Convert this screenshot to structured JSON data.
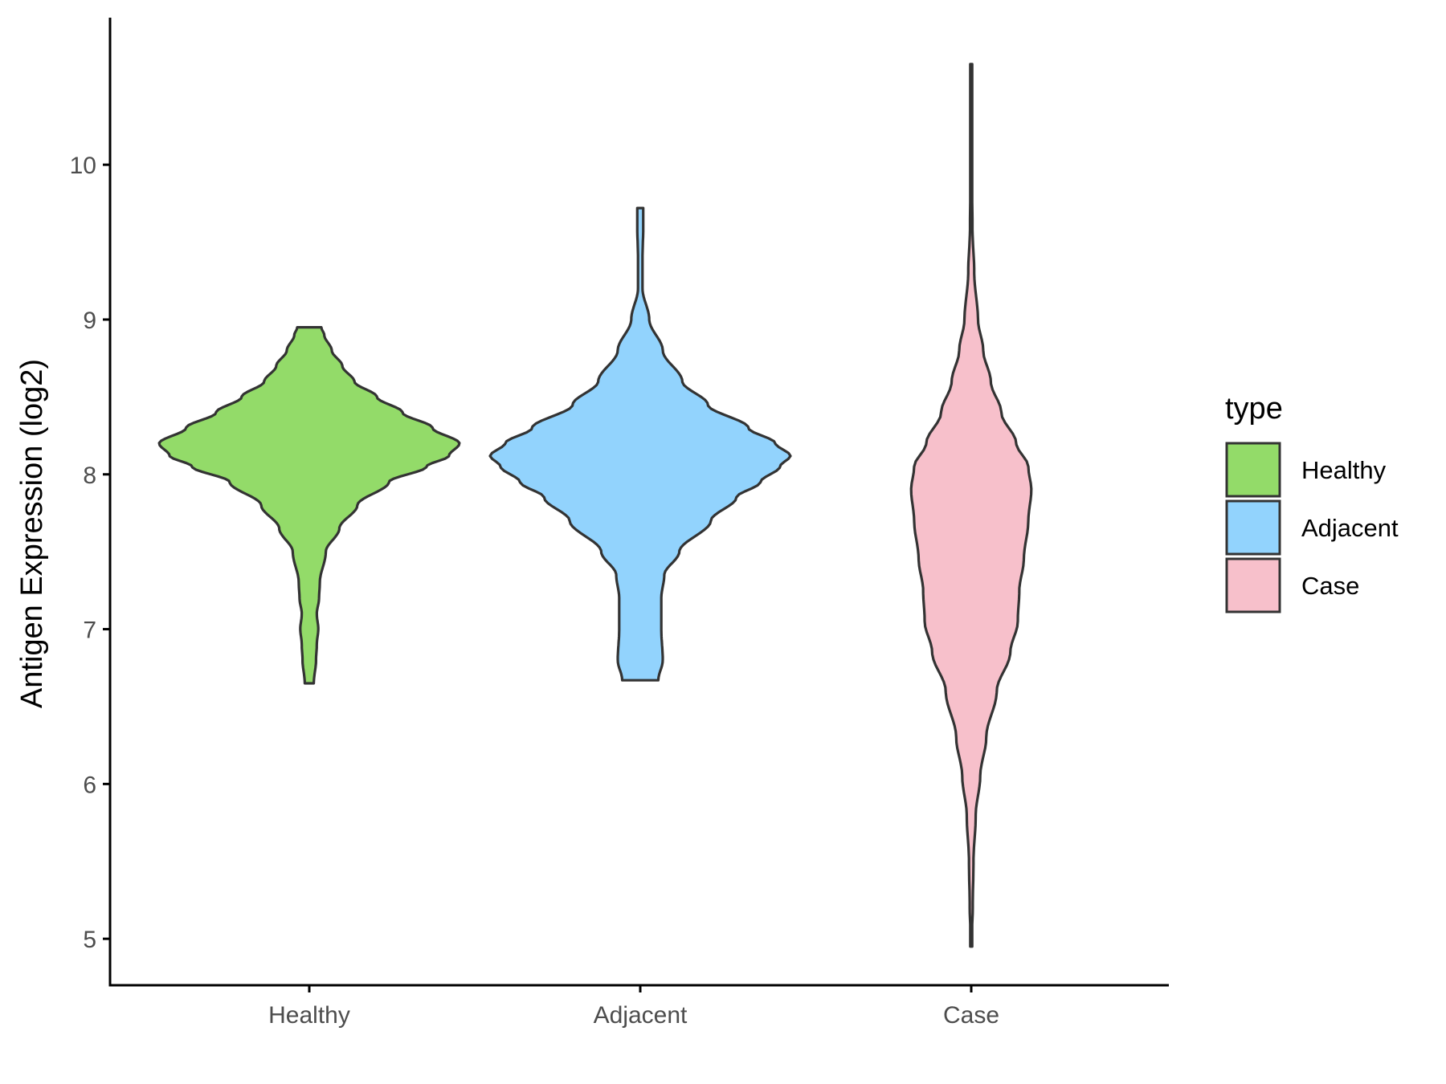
{
  "chart_data": {
    "type": "violin",
    "title": "",
    "xlabel": "",
    "ylabel": "Antigen Expression (log2)",
    "categories": [
      "Healthy",
      "Adjacent",
      "Case"
    ],
    "ylim": [
      4.7,
      10.95
    ],
    "yticks": [
      5,
      6,
      7,
      8,
      9,
      10
    ],
    "grid": false,
    "legend": {
      "title": "type",
      "position": "right",
      "entries": [
        "Healthy",
        "Adjacent",
        "Case"
      ]
    },
    "colors": {
      "Healthy": "#93DB69",
      "Adjacent": "#92D3FD",
      "Case": "#F7C0CB",
      "outline": "#333333"
    },
    "series": [
      {
        "category": "Healthy",
        "min": 6.65,
        "max": 8.95,
        "profile": [
          [
            6.65,
            0.03
          ],
          [
            6.8,
            0.045
          ],
          [
            6.9,
            0.05
          ],
          [
            7.0,
            0.06
          ],
          [
            7.1,
            0.05
          ],
          [
            7.2,
            0.065
          ],
          [
            7.3,
            0.07
          ],
          [
            7.5,
            0.11
          ],
          [
            7.65,
            0.2
          ],
          [
            7.8,
            0.32
          ],
          [
            7.95,
            0.53
          ],
          [
            8.05,
            0.78
          ],
          [
            8.12,
            0.93
          ],
          [
            8.2,
            1.0
          ],
          [
            8.3,
            0.82
          ],
          [
            8.4,
            0.62
          ],
          [
            8.5,
            0.45
          ],
          [
            8.6,
            0.3
          ],
          [
            8.7,
            0.22
          ],
          [
            8.8,
            0.15
          ],
          [
            8.9,
            0.1
          ],
          [
            8.95,
            0.08
          ]
        ]
      },
      {
        "category": "Adjacent",
        "min": 6.67,
        "max": 9.72,
        "profile": [
          [
            6.67,
            0.12
          ],
          [
            6.8,
            0.15
          ],
          [
            7.0,
            0.14
          ],
          [
            7.2,
            0.14
          ],
          [
            7.35,
            0.16
          ],
          [
            7.5,
            0.26
          ],
          [
            7.7,
            0.47
          ],
          [
            7.85,
            0.64
          ],
          [
            7.95,
            0.8
          ],
          [
            8.05,
            0.93
          ],
          [
            8.12,
            1.0
          ],
          [
            8.2,
            0.9
          ],
          [
            8.3,
            0.72
          ],
          [
            8.45,
            0.45
          ],
          [
            8.6,
            0.28
          ],
          [
            8.8,
            0.15
          ],
          [
            9.0,
            0.06
          ],
          [
            9.2,
            0.015
          ],
          [
            9.4,
            0.015
          ],
          [
            9.6,
            0.02
          ],
          [
            9.72,
            0.02
          ]
        ]
      },
      {
        "category": "Case",
        "min": 4.95,
        "max": 10.65,
        "profile": [
          [
            4.95,
            0.0
          ],
          [
            5.2,
            0.01
          ],
          [
            5.5,
            0.015
          ],
          [
            5.8,
            0.03
          ],
          [
            6.05,
            0.06
          ],
          [
            6.3,
            0.1
          ],
          [
            6.6,
            0.17
          ],
          [
            6.85,
            0.26
          ],
          [
            7.05,
            0.31
          ],
          [
            7.25,
            0.32
          ],
          [
            7.45,
            0.35
          ],
          [
            7.7,
            0.38
          ],
          [
            7.9,
            0.4
          ],
          [
            8.05,
            0.38
          ],
          [
            8.2,
            0.3
          ],
          [
            8.4,
            0.2
          ],
          [
            8.6,
            0.13
          ],
          [
            8.8,
            0.08
          ],
          [
            9.0,
            0.045
          ],
          [
            9.3,
            0.02
          ],
          [
            9.6,
            0.008
          ],
          [
            10.0,
            0.003
          ],
          [
            10.65,
            0.0
          ]
        ]
      }
    ]
  }
}
